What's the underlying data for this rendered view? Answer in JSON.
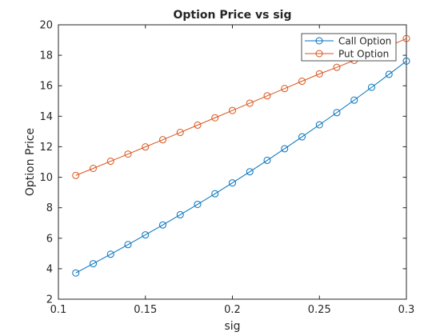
{
  "chart_data": {
    "type": "line",
    "title": "Option Price vs sig",
    "xlabel": "sig",
    "ylabel": "Option Price",
    "xlim": [
      0.1,
      0.3
    ],
    "ylim": [
      2,
      20
    ],
    "xticks": [
      0.1,
      0.15,
      0.2,
      0.25,
      0.3
    ],
    "xtick_labels": [
      "0.1",
      "0.15",
      "0.2",
      "0.25",
      "0.3"
    ],
    "yticks": [
      2,
      4,
      6,
      8,
      10,
      12,
      14,
      16,
      18,
      20
    ],
    "ytick_labels": [
      "2",
      "4",
      "6",
      "8",
      "10",
      "12",
      "14",
      "16",
      "18",
      "20"
    ],
    "grid": false,
    "legend_position": "top-right",
    "x": [
      0.11,
      0.12,
      0.13,
      0.14,
      0.15,
      0.16,
      0.17,
      0.18,
      0.19,
      0.2,
      0.21,
      0.22,
      0.23,
      0.24,
      0.25,
      0.26,
      0.27,
      0.28,
      0.29,
      0.3
    ],
    "series": [
      {
        "name": "Call Option",
        "color": "#0072BD",
        "marker": "circle",
        "values": [
          3.72,
          4.33,
          4.95,
          5.58,
          6.22,
          6.87,
          7.54,
          8.22,
          8.92,
          9.63,
          10.36,
          11.11,
          11.87,
          12.65,
          13.44,
          14.24,
          15.06,
          15.9,
          16.75,
          17.62
        ]
      },
      {
        "name": "Put Option",
        "color": "#D95319",
        "marker": "circle",
        "values": [
          10.12,
          10.58,
          11.05,
          11.52,
          11.99,
          12.46,
          12.94,
          13.42,
          13.9,
          14.38,
          14.86,
          15.34,
          15.82,
          16.3,
          16.78,
          17.21,
          17.67,
          18.13,
          18.6,
          19.1
        ]
      }
    ]
  }
}
